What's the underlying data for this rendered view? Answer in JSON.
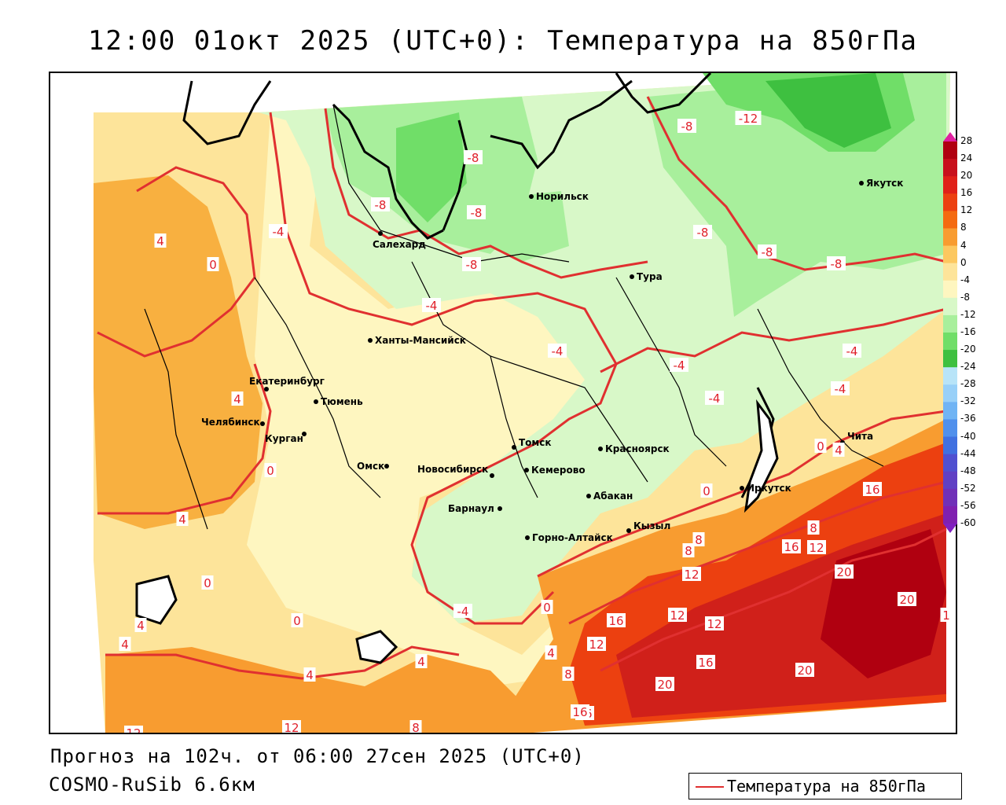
{
  "title": "12:00 01окт 2025 (UTC+0): Температура на 850гПа",
  "forecast_line": "Прогноз на 102ч. от 06:00 27сен 2025 (UTC+0)",
  "model_line": "COSMO-RuSib 6.6км",
  "legend": {
    "label": "Температура на 850гПа",
    "color": "#e03030"
  },
  "colorbar": {
    "labels": [
      "28",
      "24",
      "20",
      "16",
      "12",
      "8",
      "4",
      "0",
      "-4",
      "-8",
      "-12",
      "-16",
      "-20",
      "-24",
      "-28",
      "-32",
      "-36",
      "-40",
      "-44",
      "-48",
      "-52",
      "-56",
      "-60"
    ],
    "colors": [
      "#b00010",
      "#c8101c",
      "#e02018",
      "#ec4010",
      "#f46a10",
      "#f89c30",
      "#fcc860",
      "#fde49a",
      "#fef6c0",
      "#d8f8c8",
      "#a8ef9c",
      "#70de68",
      "#3ec040",
      "#b8e4f8",
      "#98d0f8",
      "#70b4f4",
      "#5090ec",
      "#4070e0",
      "#5050d0",
      "#6040c4",
      "#7030b8",
      "#8020b0"
    ],
    "top_arrow": "#e020a0",
    "bottom_arrow": "#8020c0"
  },
  "cities": [
    {
      "name": "Норильск"
    },
    {
      "name": "Якутск"
    },
    {
      "name": "Салехард"
    },
    {
      "name": "Тура"
    },
    {
      "name": "Ханты-Мансийск"
    },
    {
      "name": "Екатеринбург"
    },
    {
      "name": "Тюмень"
    },
    {
      "name": "Челябинск"
    },
    {
      "name": "Курган"
    },
    {
      "name": "Омск"
    },
    {
      "name": "Новосибирск"
    },
    {
      "name": "Томск"
    },
    {
      "name": "Кемерово"
    },
    {
      "name": "Красноярск"
    },
    {
      "name": "Абакан"
    },
    {
      "name": "Барнаул"
    },
    {
      "name": "Горно-Алтайск"
    },
    {
      "name": "Кызыл"
    },
    {
      "name": "Иркутск"
    },
    {
      "name": "Чита"
    }
  ],
  "isotherm_labels": [
    "-12",
    "-8",
    "-8",
    "-8",
    "-8",
    "-8",
    "-8",
    "-8",
    "-8",
    "-4",
    "-4",
    "-4",
    "-4",
    "-4",
    "-4",
    "-4",
    "-4",
    "0",
    "0",
    "0",
    "0",
    "0",
    "0",
    "0",
    "4",
    "4",
    "4",
    "4",
    "4",
    "4",
    "4",
    "4",
    "4",
    "8",
    "8",
    "8",
    "8",
    "8",
    "12",
    "12",
    "12",
    "12",
    "12",
    "12",
    "12",
    "16",
    "16",
    "16",
    "16",
    "16",
    "16",
    "20",
    "20",
    "20",
    "20",
    "1"
  ]
}
